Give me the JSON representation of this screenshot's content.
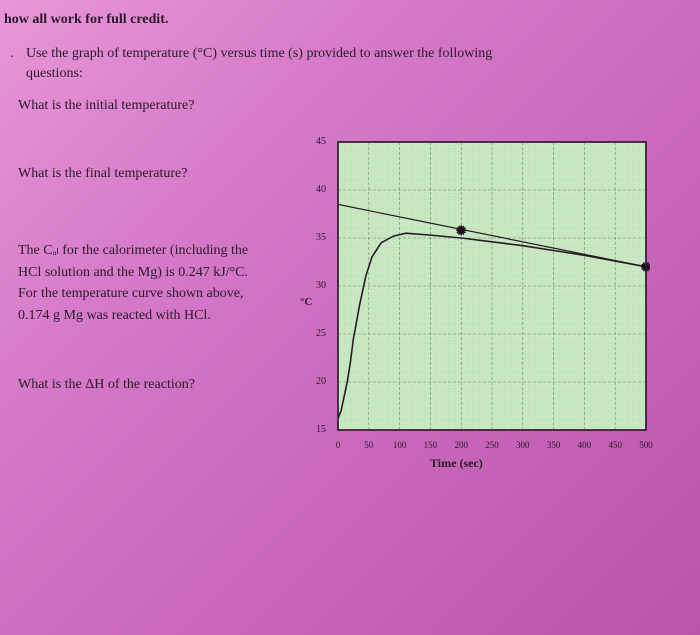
{
  "header": "how all work for full credit.",
  "instruction_line1": "Use the graph of temperature (°C) versus time (s) provided to answer the following",
  "instruction_line2": "questions:",
  "questions": {
    "q1": "What is the initial temperature?",
    "q2": "What is the final temperature?",
    "q3": "The Cₐₗ for the calorimeter (including the HCl solution and the Mg) is 0.247 kJ/°C. For the temperature curve shown above, 0.174 g Mg was reacted with HCl.",
    "q4": "What is the ΔH of the reaction?"
  },
  "chart": {
    "type": "line",
    "xlabel": "Time (sec)",
    "ylabel": "°C",
    "xlim": [
      0,
      500
    ],
    "ylim": [
      15,
      45
    ],
    "xtick_step": 50,
    "ytick_step": 5,
    "xticks": [
      0,
      50,
      100,
      150,
      200,
      250,
      300,
      350,
      400,
      450,
      500
    ],
    "yticks": [
      15,
      20,
      25,
      30,
      35,
      40,
      45
    ],
    "plot_bg": "#c7e8c0",
    "border_color": "#3a1a35",
    "grid_color": "#6a8a64",
    "series": {
      "data_curve": {
        "points": [
          [
            0,
            16.2
          ],
          [
            5,
            17
          ],
          [
            10,
            18.5
          ],
          [
            15,
            20
          ],
          [
            20,
            22
          ],
          [
            25,
            24.5
          ],
          [
            35,
            28
          ],
          [
            45,
            31
          ],
          [
            55,
            33
          ],
          [
            70,
            34.5
          ],
          [
            90,
            35.2
          ],
          [
            110,
            35.5
          ],
          [
            150,
            35.3
          ],
          [
            200,
            35.0
          ],
          [
            250,
            34.6
          ],
          [
            300,
            34.2
          ],
          [
            350,
            33.7
          ],
          [
            400,
            33.2
          ],
          [
            450,
            32.6
          ],
          [
            500,
            32.0
          ]
        ],
        "color": "#2a1a28",
        "width": 1.6
      },
      "extrap_line": {
        "points": [
          [
            0,
            38.5
          ],
          [
            500,
            32.0
          ]
        ],
        "color": "#2a1a28",
        "width": 1.2
      }
    },
    "markers": [
      {
        "x": 200,
        "y": 35.8,
        "symbol": "star"
      },
      {
        "x": 500,
        "y": 32.0,
        "symbol": "star"
      }
    ],
    "label_fontsize": 11,
    "tick_fontsize": 10
  }
}
